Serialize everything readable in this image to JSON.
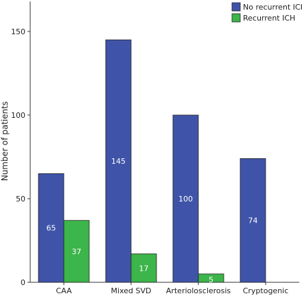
{
  "chart_data": {
    "type": "bar",
    "categories": [
      "CAA",
      "Mixed SVD",
      "Arteriolosclerosis",
      "Cryptogenic"
    ],
    "series": [
      {
        "name": "No recurrent ICH",
        "values": [
          65,
          145,
          100,
          74
        ],
        "color": "#3f54a8",
        "labels": [
          "65",
          "145",
          "100",
          "74"
        ]
      },
      {
        "name": "Recurrent ICH",
        "values": [
          37,
          17,
          5,
          0
        ],
        "color": "#3cb54a",
        "labels": [
          "37",
          "17",
          "5",
          ""
        ]
      }
    ],
    "xlabel": "",
    "ylabel": "Number of patients",
    "ylim": [
      0,
      168
    ],
    "yticks": [
      0,
      50,
      100,
      150
    ],
    "legend_position": "top-right",
    "grid": false
  }
}
